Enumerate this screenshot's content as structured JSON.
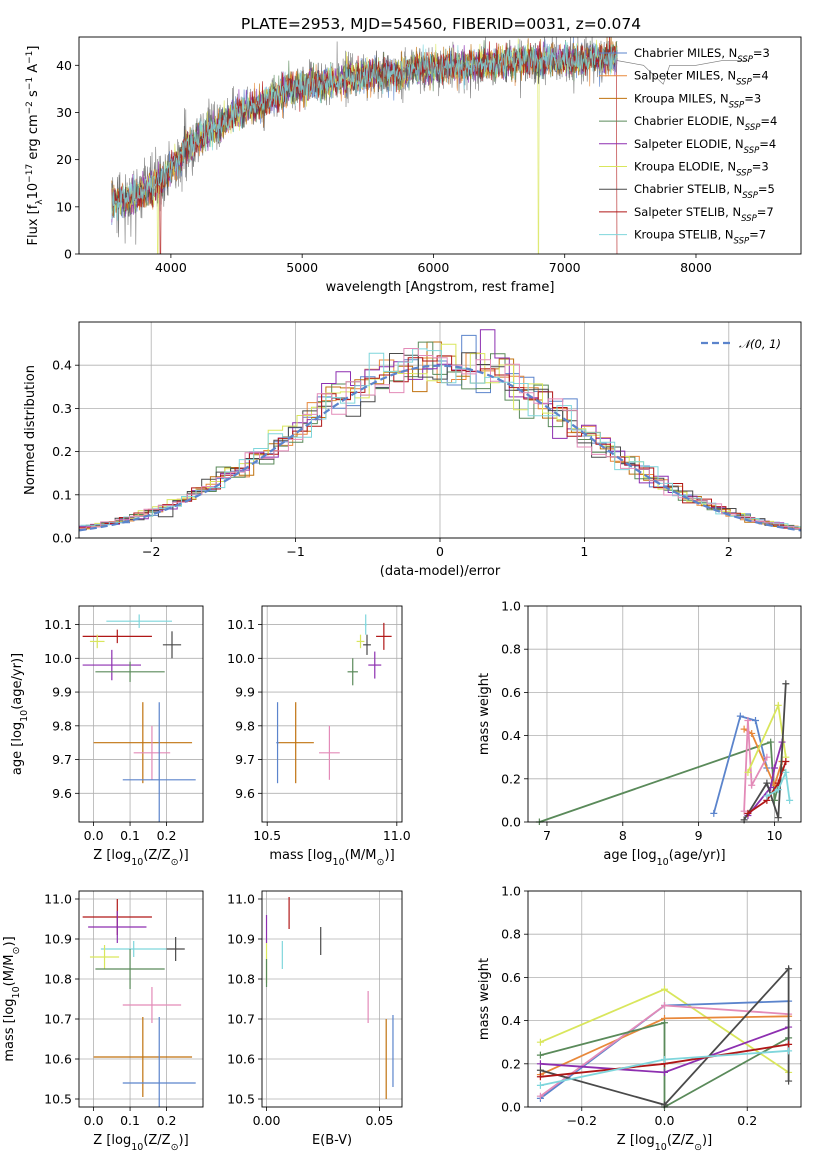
{
  "figure_title": "PLATE=2953, MJD=54560, FIBERID=0031, z=0.074",
  "colors": {
    "Chabrier MILES": "#5b84cc",
    "Salpeter MILES": "#e8883a",
    "Kroupa MILES": "#c0720f",
    "Chabrier ELODIE": "#5a8a5a",
    "Salpeter ELODIE": "#8d2fb0",
    "Kroupa ELODIE": "#d9e65c",
    "Chabrier STELIB": "#4a4a4a",
    "Salpeter STELIB": "#b01717",
    "Kroupa STELIB": "#7fd6dc",
    "pink": "#e38bb8"
  },
  "chart_data": [
    {
      "id": "spectrum",
      "type": "line",
      "xlabel": "wavelength [Angstrom, rest frame]",
      "ylabel": "Flux [f$_\\lambda$10$^{-17}$ erg cm$^{-2}$ s$^{-1}$ A$^{-1}$]",
      "ylabel_parts": [
        "Flux [f",
        "λ",
        "10",
        "−17",
        " erg cm",
        "−2",
        " s",
        "−1",
        " A",
        "−1",
        "]"
      ],
      "xlim": [
        3300,
        8800
      ],
      "ylim": [
        0,
        46
      ],
      "xticks": [
        4000,
        5000,
        6000,
        7000,
        8000
      ],
      "yticks": [
        0,
        10,
        20,
        30,
        40
      ],
      "legend_position": "right",
      "grid": false,
      "legend": [
        {
          "name": "Chabrier MILES",
          "nssp": "3"
        },
        {
          "name": "Salpeter MILES",
          "nssp": "4"
        },
        {
          "name": "Kroupa MILES",
          "nssp": "3"
        },
        {
          "name": "Chabrier ELODIE",
          "nssp": "4"
        },
        {
          "name": "Salpeter ELODIE",
          "nssp": "4"
        },
        {
          "name": "Kroupa ELODIE",
          "nssp": "3"
        },
        {
          "name": "Chabrier STELIB",
          "nssp": "5"
        },
        {
          "name": "Salpeter STELIB",
          "nssp": "7"
        },
        {
          "name": "Kroupa STELIB",
          "nssp": "7"
        }
      ],
      "continuum": [
        [
          3550,
          11
        ],
        [
          3700,
          12
        ],
        [
          3850,
          14
        ],
        [
          3950,
          16
        ],
        [
          4100,
          22
        ],
        [
          4300,
          26
        ],
        [
          4500,
          30
        ],
        [
          4700,
          32
        ],
        [
          4900,
          35
        ],
        [
          5100,
          36
        ],
        [
          5300,
          37
        ],
        [
          5500,
          38
        ],
        [
          5700,
          38
        ],
        [
          5900,
          39.5
        ],
        [
          6100,
          39.5
        ],
        [
          6300,
          40
        ],
        [
          6500,
          40.5
        ],
        [
          6700,
          41
        ],
        [
          6900,
          41
        ],
        [
          7100,
          41
        ],
        [
          7300,
          41.5
        ],
        [
          7400,
          42
        ]
      ],
      "models_span": [
        3550,
        7400
      ],
      "data_extra": [
        [
          7400,
          41
        ],
        [
          7600,
          40
        ],
        [
          7750,
          36
        ],
        [
          7800,
          40
        ],
        [
          8000,
          40
        ],
        [
          8200,
          41
        ],
        [
          8400,
          41
        ]
      ],
      "drops": [
        {
          "x": 3900,
          "series": "Kroupa ELODIE"
        },
        {
          "x": 3920,
          "series": "Salpeter STELIB"
        },
        {
          "x": 6800,
          "series": "Kroupa ELODIE"
        },
        {
          "x": 7400,
          "series": "Salpeter STELIB"
        }
      ]
    },
    {
      "id": "residuals",
      "type": "histogram",
      "xlabel": "(data-model)/error",
      "ylabel": "Normed distribution",
      "xlim": [
        -2.5,
        2.5
      ],
      "ylim": [
        0,
        0.5
      ],
      "xticks": [
        -2,
        -1,
        0,
        1,
        2
      ],
      "yticks": [
        0.0,
        0.1,
        0.2,
        0.3,
        0.4
      ],
      "grid": true,
      "legend": [
        {
          "name": "$\\mathcal{N}(0,1)$",
          "label": "𝒩(0, 1)",
          "style": "dashed",
          "color": "#5b84cc"
        }
      ],
      "bin_width": 0.1
    },
    {
      "id": "age-vs-Z",
      "type": "errorbar",
      "xlabel": "Z [log$_{10}$(Z/Z$_\\odot$)]",
      "ylabel": "age  [log$_{10}$(age/yr)]",
      "xlim": [
        -0.04,
        0.3
      ],
      "ylim": [
        9.515,
        10.155
      ],
      "xticks": [
        0.0,
        0.1,
        0.2
      ],
      "yticks": [
        9.6,
        9.7,
        9.8,
        9.9,
        10.0,
        10.1
      ],
      "grid": true,
      "points": [
        {
          "series": "Kroupa STELIB",
          "x": 0.125,
          "xerr": 0.09,
          "y": 10.11,
          "yerr": 0.02
        },
        {
          "series": "Salpeter STELIB",
          "x": 0.065,
          "xerr": 0.095,
          "y": 10.065,
          "yerr": 0.02
        },
        {
          "series": "Kroupa ELODIE",
          "x": 0.01,
          "xerr": 0.02,
          "y": 10.05,
          "yerr": 0.02
        },
        {
          "series": "Chabrier STELIB",
          "x": 0.215,
          "xerr": 0.025,
          "y": 10.04,
          "yerr": 0.04
        },
        {
          "series": "Salpeter ELODIE",
          "x": 0.05,
          "xerr": 0.08,
          "y": 9.98,
          "yerr": 0.045
        },
        {
          "series": "Chabrier ELODIE",
          "x": 0.1,
          "xerr": 0.095,
          "y": 9.96,
          "yerr": 0.03
        },
        {
          "series": "Kroupa MILES",
          "x": 0.135,
          "xerr": 0.135,
          "y": 9.75,
          "yerr": 0.12
        },
        {
          "series": "pink",
          "x": 0.16,
          "xerr": 0.05,
          "y": 9.72,
          "yerr": 0.08
        },
        {
          "series": "Chabrier MILES",
          "x": 0.18,
          "xerr": 0.1,
          "y": 9.64,
          "yerr": 0.23
        }
      ]
    },
    {
      "id": "age-vs-mass",
      "type": "errorbar",
      "xlabel": "mass [log$_{10}$(M/M$_\\odot$)]",
      "ylabel": "",
      "xlim": [
        10.48,
        11.02
      ],
      "ylim": [
        9.515,
        10.155
      ],
      "xticks": [
        10.5,
        11.0
      ],
      "yticks": [
        9.6,
        9.7,
        9.8,
        9.9,
        10.0,
        10.1
      ],
      "grid": true,
      "points": [
        {
          "series": "Kroupa STELIB",
          "x": 10.88,
          "xerr": 0.005,
          "y": 10.1,
          "yerr": 0.03
        },
        {
          "series": "Salpeter STELIB",
          "x": 10.95,
          "xerr": 0.03,
          "y": 10.065,
          "yerr": 0.04
        },
        {
          "series": "Kroupa ELODIE",
          "x": 10.86,
          "xerr": 0.015,
          "y": 10.05,
          "yerr": 0.02
        },
        {
          "series": "Chabrier STELIB",
          "x": 10.885,
          "xerr": 0.015,
          "y": 10.04,
          "yerr": 0.03
        },
        {
          "series": "Salpeter ELODIE",
          "x": 10.915,
          "xerr": 0.025,
          "y": 9.98,
          "yerr": 0.04
        },
        {
          "series": "Chabrier ELODIE",
          "x": 10.83,
          "xerr": 0.02,
          "y": 9.96,
          "yerr": 0.04
        },
        {
          "series": "Kroupa MILES",
          "x": 10.61,
          "xerr": 0.07,
          "y": 9.75,
          "yerr": 0.12
        },
        {
          "series": "pink",
          "x": 10.74,
          "xerr": 0.04,
          "y": 9.72,
          "yerr": 0.08
        },
        {
          "series": "Chabrier MILES",
          "x": 10.54,
          "xerr": 0.005,
          "y": 9.75,
          "yerr": 0.12
        }
      ]
    },
    {
      "id": "weight-vs-age",
      "type": "line",
      "xlabel": "age  [log$_{10}$(age/yr)]",
      "ylabel": "mass weight",
      "xlim": [
        6.75,
        10.35
      ],
      "ylim": [
        0,
        1
      ],
      "xticks": [
        7,
        8,
        9,
        10
      ],
      "yticks": [
        0.0,
        0.2,
        0.4,
        0.6,
        0.8,
        1.0
      ],
      "grid": true,
      "series": [
        {
          "name": "Chabrier ELODIE",
          "points": [
            [
              6.9,
              0.0
            ],
            [
              9.95,
              0.37
            ],
            [
              10.0,
              0.1
            ],
            [
              10.1,
              0.24
            ]
          ]
        },
        {
          "name": "Chabrier MILES",
          "points": [
            [
              9.2,
              0.04
            ],
            [
              9.55,
              0.49
            ],
            [
              9.75,
              0.47
            ],
            [
              9.9,
              0.25
            ]
          ]
        },
        {
          "name": "Salpeter MILES",
          "points": [
            [
              9.6,
              0.43
            ],
            [
              9.7,
              0.41
            ],
            [
              10.0,
              0.17
            ],
            [
              10.1,
              0.28
            ]
          ]
        },
        {
          "name": "pink",
          "points": [
            [
              9.6,
              0.05
            ],
            [
              9.65,
              0.47
            ],
            [
              9.7,
              0.17
            ],
            [
              9.9,
              0.3
            ]
          ]
        },
        {
          "name": "Kroupa ELODIE",
          "points": [
            [
              9.65,
              0.23
            ],
            [
              10.05,
              0.54
            ],
            [
              10.15,
              0.3
            ]
          ]
        },
        {
          "name": "Salpeter ELODIE",
          "points": [
            [
              9.65,
              0.03
            ],
            [
              9.95,
              0.16
            ],
            [
              10.0,
              0.25
            ],
            [
              10.1,
              0.37
            ]
          ]
        },
        {
          "name": "Chabrier STELIB",
          "points": [
            [
              9.6,
              0.01
            ],
            [
              9.9,
              0.18
            ],
            [
              10.05,
              0.02
            ],
            [
              10.15,
              0.64
            ]
          ]
        },
        {
          "name": "Salpeter STELIB",
          "points": [
            [
              9.65,
              0.04
            ],
            [
              9.9,
              0.1
            ],
            [
              10.05,
              0.18
            ],
            [
              10.15,
              0.28
            ]
          ]
        },
        {
          "name": "Kroupa STELIB",
          "points": [
            [
              9.9,
              0.12
            ],
            [
              10.05,
              0.15
            ],
            [
              10.15,
              0.23
            ],
            [
              10.2,
              0.1
            ]
          ]
        }
      ]
    },
    {
      "id": "mass-vs-Z",
      "type": "errorbar",
      "xlabel": "Z [log$_{10}$(Z/Z$_\\odot$)]",
      "ylabel": "mass [log$_{10}$(M/M$_\\odot$)]",
      "xlim": [
        -0.04,
        0.3
      ],
      "ylim": [
        10.48,
        11.02
      ],
      "xticks": [
        0.0,
        0.1,
        0.2
      ],
      "yticks": [
        10.5,
        10.6,
        10.7,
        10.8,
        10.9,
        11.0
      ],
      "grid": true,
      "points": [
        {
          "series": "Salpeter STELIB",
          "x": 0.065,
          "xerr": 0.095,
          "y": 10.955,
          "yerr": 0.045
        },
        {
          "series": "Salpeter ELODIE",
          "x": 0.065,
          "xerr": 0.08,
          "y": 10.93,
          "yerr": 0.04
        },
        {
          "series": "Kroupa STELIB",
          "x": 0.11,
          "xerr": 0.09,
          "y": 10.875,
          "yerr": 0.02
        },
        {
          "series": "Chabrier STELIB",
          "x": 0.225,
          "xerr": 0.025,
          "y": 10.875,
          "yerr": 0.03
        },
        {
          "series": "Kroupa ELODIE",
          "x": 0.03,
          "xerr": 0.04,
          "y": 10.855,
          "yerr": 0.03
        },
        {
          "series": "Chabrier ELODIE",
          "x": 0.1,
          "xerr": 0.095,
          "y": 10.825,
          "yerr": 0.05
        },
        {
          "series": "pink",
          "x": 0.16,
          "xerr": 0.08,
          "y": 10.735,
          "yerr": 0.045
        },
        {
          "series": "Kroupa MILES",
          "x": 0.135,
          "xerr": 0.135,
          "y": 10.605,
          "yerr": 0.1
        },
        {
          "series": "Chabrier MILES",
          "x": 0.18,
          "xerr": 0.1,
          "y": 10.54,
          "yerr": 0.165
        }
      ]
    },
    {
      "id": "mass-vs-EBV",
      "type": "errorbar",
      "xlabel": "E(B-V)",
      "ylabel": "",
      "xlim": [
        -0.002,
        0.06
      ],
      "ylim": [
        10.48,
        11.02
      ],
      "xticks": [
        0.0,
        0.05
      ],
      "yticks": [
        10.5,
        10.6,
        10.7,
        10.8,
        10.9,
        11.0
      ],
      "grid": true,
      "points": [
        {
          "series": "Salpeter STELIB",
          "x": 0.01,
          "xerr": 0,
          "y": 10.965,
          "yerr": 0.04
        },
        {
          "series": "Salpeter ELODIE",
          "x": 0.0,
          "xerr": 0,
          "y": 10.925,
          "yerr": 0.035
        },
        {
          "series": "Chabrier STELIB",
          "x": 0.024,
          "xerr": 0,
          "y": 10.895,
          "yerr": 0.035
        },
        {
          "series": "Kroupa STELIB",
          "x": 0.007,
          "xerr": 0,
          "y": 10.86,
          "yerr": 0.035
        },
        {
          "series": "Kroupa ELODIE",
          "x": 0.0,
          "xerr": 0,
          "y": 10.84,
          "yerr": 0.05
        },
        {
          "series": "Chabrier ELODIE",
          "x": 0.0,
          "xerr": 0,
          "y": 10.815,
          "yerr": 0.035
        },
        {
          "series": "pink",
          "x": 0.045,
          "xerr": 0,
          "y": 10.73,
          "yerr": 0.04
        },
        {
          "series": "Kroupa MILES",
          "x": 0.053,
          "xerr": 0,
          "y": 10.6,
          "yerr": 0.1
        },
        {
          "series": "Chabrier MILES",
          "x": 0.056,
          "xerr": 0,
          "y": 10.62,
          "yerr": 0.09
        }
      ]
    },
    {
      "id": "weight-vs-Z",
      "type": "line",
      "xlabel": "Z [log$_{10}$(Z/Z$_\\odot$)]",
      "ylabel": "mass weight",
      "xlim": [
        -0.33,
        0.33
      ],
      "ylim": [
        0,
        1
      ],
      "xticks": [
        -0.2,
        0.0,
        0.2
      ],
      "yticks": [
        0.0,
        0.2,
        0.4,
        0.6,
        0.8,
        1.0
      ],
      "grid": true,
      "series": [
        {
          "name": "Kroupa ELODIE",
          "points": [
            [
              -0.3,
              0.3
            ],
            [
              0.0,
              0.545
            ],
            [
              0.3,
              0.16
            ]
          ]
        },
        {
          "name": "Chabrier MILES",
          "points": [
            [
              -0.3,
              0.04
            ],
            [
              0.0,
              0.47
            ],
            [
              0.3,
              0.49
            ]
          ]
        },
        {
          "name": "Salpeter MILES",
          "points": [
            [
              -0.3,
              0.15
            ],
            [
              0.0,
              0.41
            ],
            [
              0.3,
              0.42
            ]
          ]
        },
        {
          "name": "pink",
          "points": [
            [
              -0.3,
              0.05
            ],
            [
              0.0,
              0.47
            ],
            [
              0.3,
              0.43
            ]
          ]
        },
        {
          "name": "Chabrier ELODIE",
          "points": [
            [
              -0.3,
              0.24
            ],
            [
              0.0,
              0.39
            ],
            [
              0.0,
              0.0
            ],
            [
              0.3,
              0.32
            ]
          ]
        },
        {
          "name": "Salpeter ELODIE",
          "points": [
            [
              -0.3,
              0.2
            ],
            [
              0.0,
              0.16
            ],
            [
              0.3,
              0.37
            ]
          ]
        },
        {
          "name": "Chabrier STELIB",
          "points": [
            [
              -0.3,
              0.17
            ],
            [
              0.0,
              0.01
            ],
            [
              0.3,
              0.64
            ],
            [
              0.3,
              0.12
            ]
          ]
        },
        {
          "name": "Salpeter STELIB",
          "points": [
            [
              -0.3,
              0.14
            ],
            [
              0.0,
              0.2
            ],
            [
              0.3,
              0.29
            ]
          ]
        },
        {
          "name": "Kroupa STELIB",
          "points": [
            [
              -0.3,
              0.1
            ],
            [
              0.0,
              0.22
            ],
            [
              0.3,
              0.26
            ]
          ]
        }
      ]
    }
  ]
}
